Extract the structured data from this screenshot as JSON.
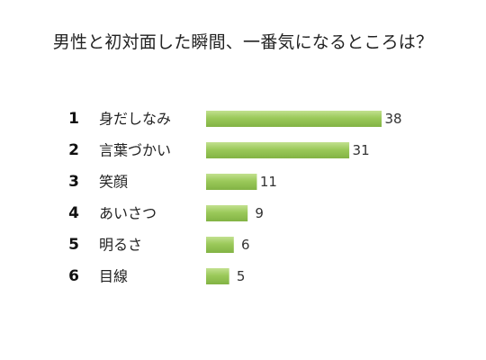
{
  "chart_data": {
    "type": "bar",
    "orientation": "horizontal",
    "title": "男性と初対面した瞬間、一番気になるところは？",
    "ranks": [
      "1",
      "2",
      "3",
      "4",
      "5",
      "6"
    ],
    "categories": [
      "身だしなみ",
      "言葉づかい",
      "笑顔",
      "あいさつ",
      "明るさ",
      "目線"
    ],
    "values": [
      38,
      31,
      11,
      9,
      6,
      5
    ],
    "value_labels": [
      "38",
      "31",
      "11",
      "9",
      "6",
      "5"
    ],
    "xlim": [
      0,
      38
    ],
    "grid": false,
    "legend": "none",
    "bar_color": "#9bc95a",
    "bar_color_light": "#c2e08f",
    "bar_color_dark": "#82b344"
  }
}
